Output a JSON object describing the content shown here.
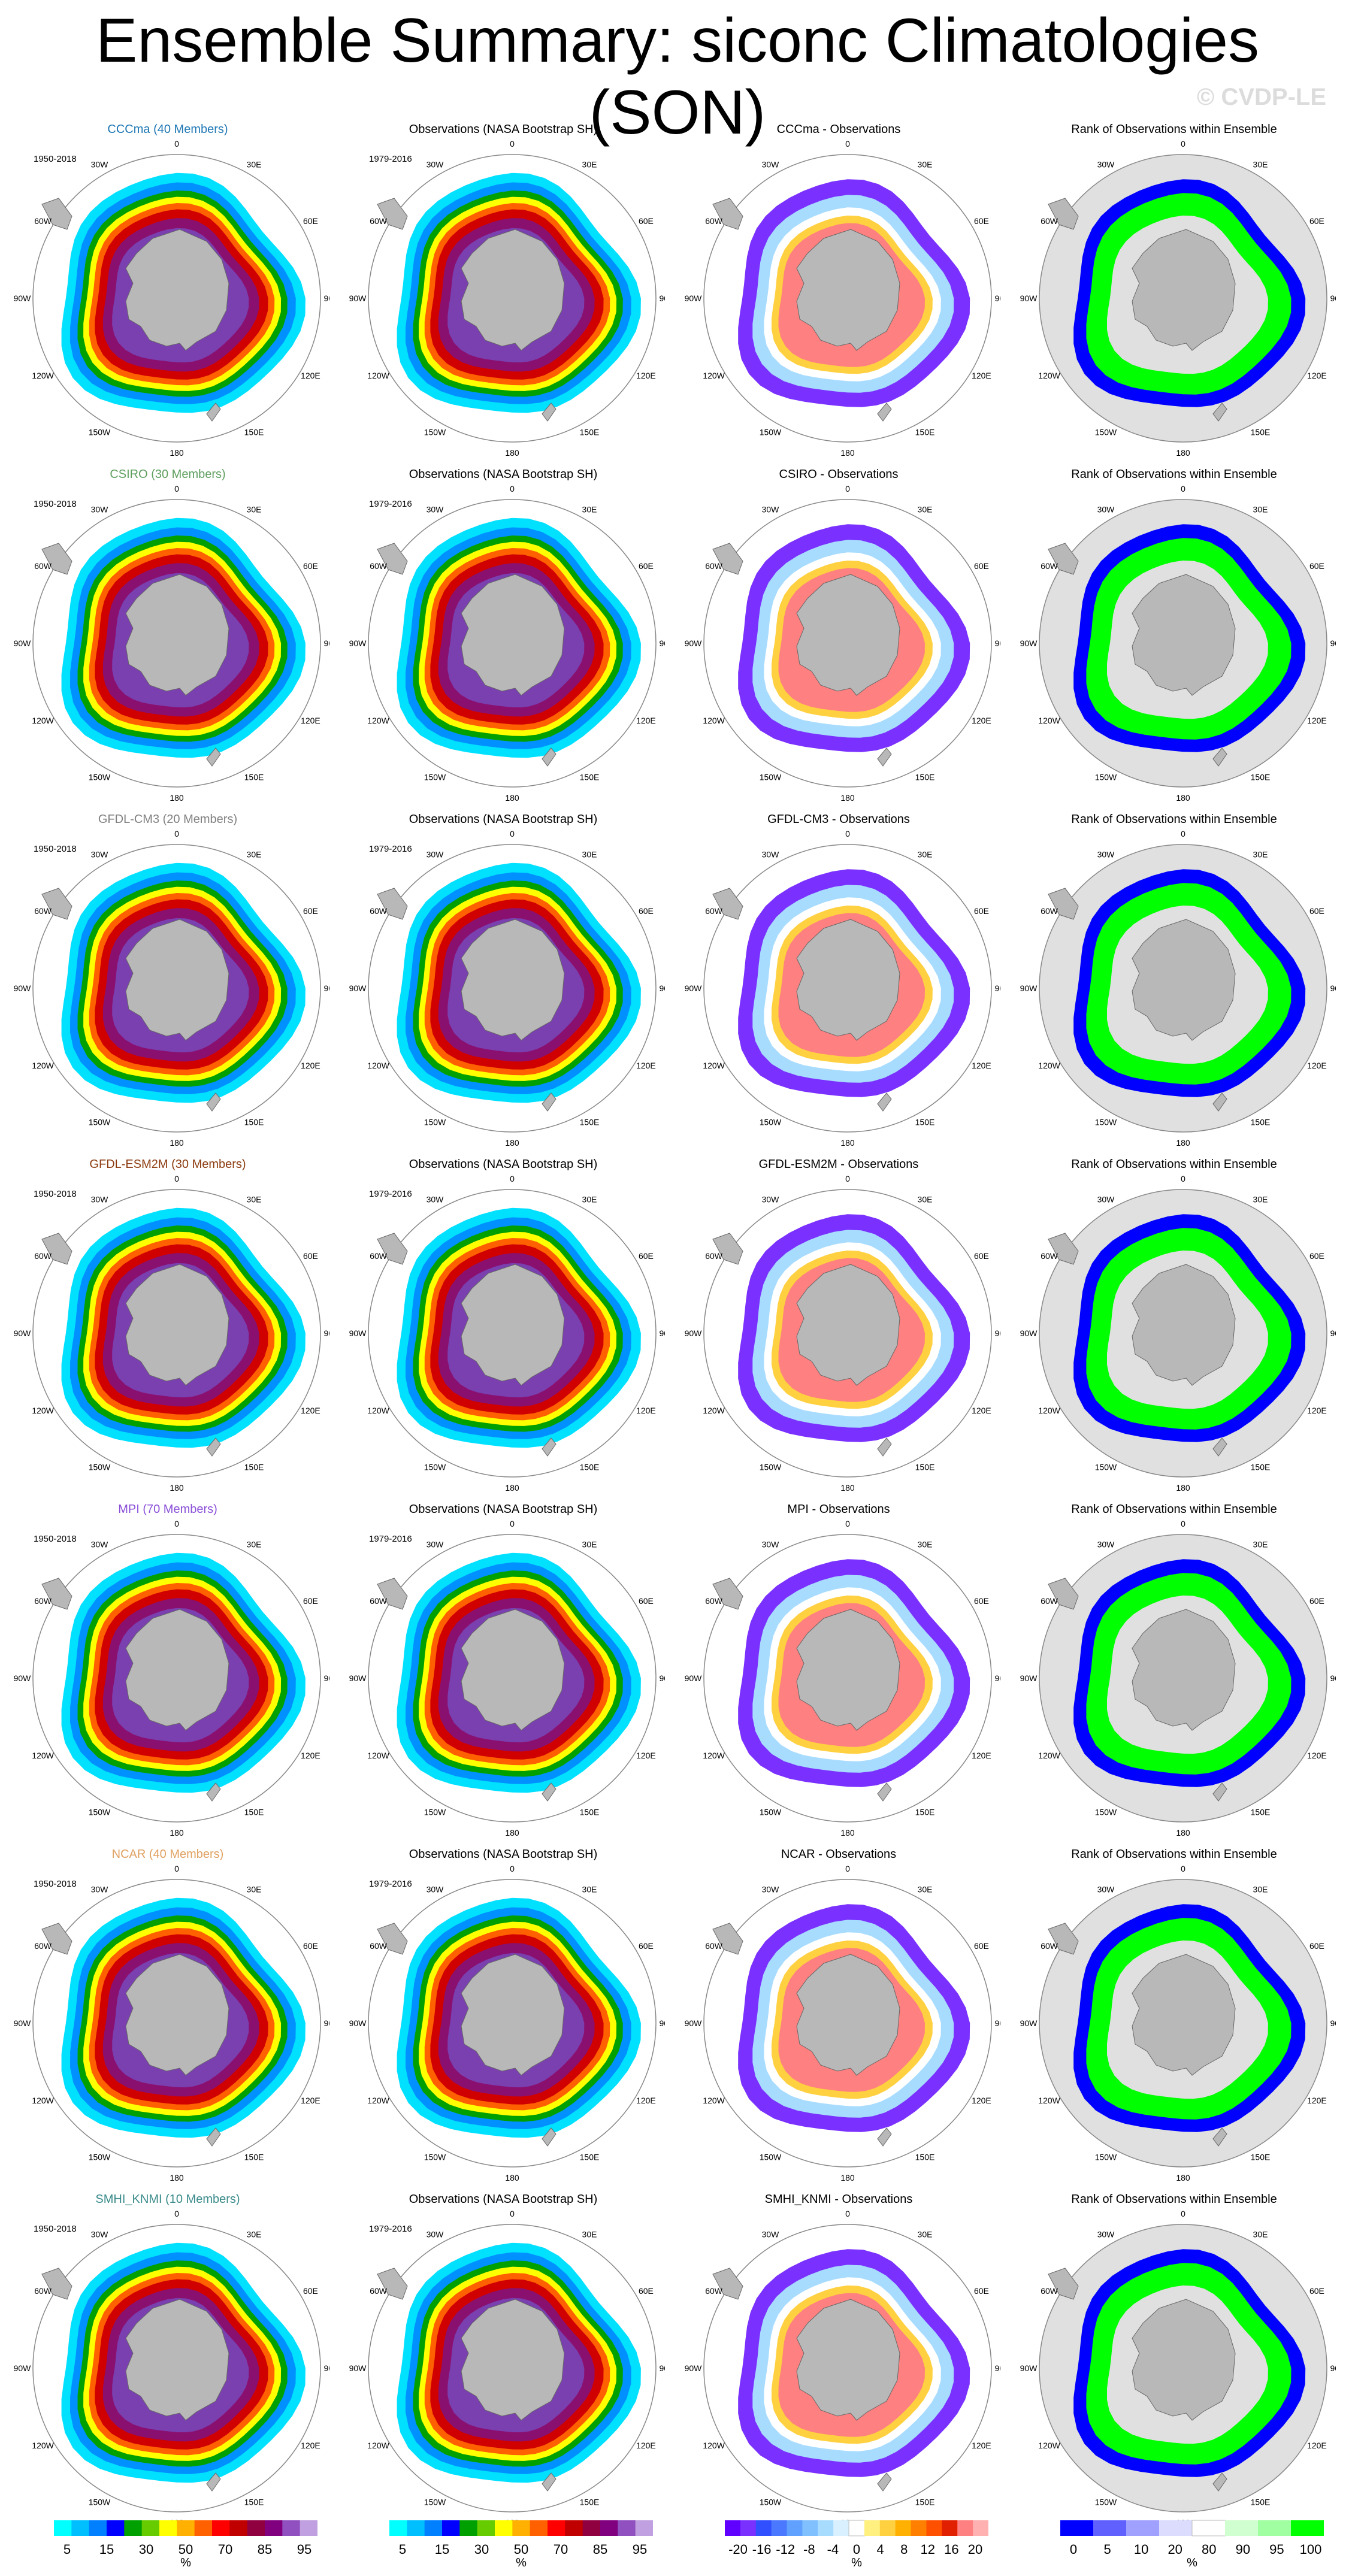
{
  "title": "Ensemble Summary: siconc Climatologies (SON)",
  "copyright": "© CVDP-LE",
  "rows": [
    {
      "model": "CCCma (40 Members)",
      "name": "CCCma",
      "model_color": "#1f77b4",
      "diff_title": "CCCma - Observations"
    },
    {
      "model": "CSIRO (30 Members)",
      "name": "CSIRO",
      "model_color": "#5e9e5e",
      "diff_title": "CSIRO - Observations"
    },
    {
      "model": "GFDL-CM3 (20 Members)",
      "name": "GFDL-CM3",
      "model_color": "#808080",
      "diff_title": "GFDL-CM3 - Observations"
    },
    {
      "model": "GFDL-ESM2M (30 Members)",
      "name": "GFDL-ESM2M",
      "model_color": "#8b3a0e",
      "diff_title": "GFDL-ESM2M - Observations"
    },
    {
      "model": "MPI (70 Members)",
      "name": "MPI",
      "model_color": "#8a4fd8",
      "diff_title": "MPI - Observations"
    },
    {
      "model": "NCAR (40 Members)",
      "name": "NCAR",
      "model_color": "#e0a060",
      "diff_title": "NCAR - Observations"
    },
    {
      "model": "SMHI_KNMI (10 Members)",
      "name": "SMHI_KNMI",
      "model_color": "#3a8a8a",
      "diff_title": "SMHI_KNMI - Observations"
    }
  ],
  "obs_title": "Observations (NASA Bootstrap SH)",
  "rank_title": "Rank of Observations within Ensemble",
  "model_period": "1950-2018",
  "obs_period": "1979-2016",
  "map_labels": {
    "lon_0": "0",
    "lon_30e": "30E",
    "lon_60e": "60E",
    "lon_90e": "90E",
    "lon_120e": "120E",
    "lon_150e": "150E",
    "lon_180": "180",
    "lon_150w": "150W",
    "lon_120w": "120W",
    "lon_90w": "90W",
    "lon_60w": "60W",
    "lon_30w": "30W"
  },
  "colorbars": {
    "conc": {
      "ticks": [
        "5",
        "15",
        "30",
        "50",
        "70",
        "85",
        "95"
      ],
      "unit": "%",
      "colors": [
        "#00ffff",
        "#00bfff",
        "#0080ff",
        "#0000ff",
        "#00a000",
        "#66cc00",
        "#ffff00",
        "#ffb000",
        "#ff6000",
        "#ff0000",
        "#c00000",
        "#900040",
        "#800080",
        "#9050c0",
        "#c0a0e0"
      ]
    },
    "diff": {
      "ticks": [
        "-20",
        "-16",
        "-12",
        "-8",
        "-4",
        "0",
        "4",
        "8",
        "12",
        "16",
        "20"
      ],
      "unit": "%",
      "colors": [
        "#6000ff",
        "#7a30ff",
        "#3050ff",
        "#4a78ff",
        "#60a0ff",
        "#80c0ff",
        "#a8dcff",
        "#d8f0ff",
        "#ffffff",
        "#fff080",
        "#ffd040",
        "#ffb000",
        "#ff8000",
        "#ff5000",
        "#e02000",
        "#ff8080",
        "#ffb0b0"
      ]
    },
    "rank": {
      "ticks": [
        "0",
        "5",
        "10",
        "20",
        "80",
        "90",
        "95",
        "100"
      ],
      "unit": "%",
      "colors": [
        "#0000ff",
        "#6060ff",
        "#a0a0ff",
        "#dcdcff",
        "#ffffff",
        "#d0ffd0",
        "#a0ffa0",
        "#00ff00"
      ]
    }
  }
}
